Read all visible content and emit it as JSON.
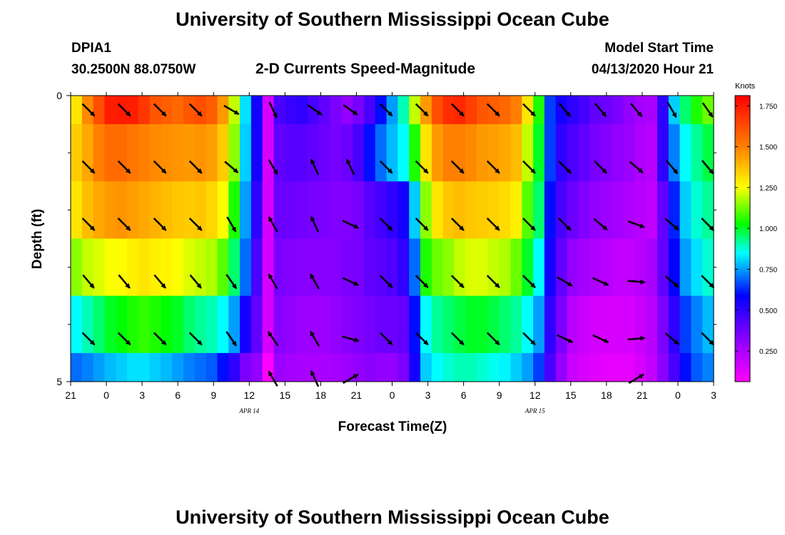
{
  "header": {
    "title_top": "University of Southern Mississippi Ocean Cube",
    "title_bottom": "University of Southern Mississippi Ocean Cube",
    "station": "DPIA1",
    "coords": "30.2500N 88.0750W",
    "subtitle": "2-D Currents Speed-Magnitude",
    "model_start_label": "Model Start Time",
    "model_start_value": "04/13/2020 Hour 21"
  },
  "chart_data": {
    "type": "heatmap",
    "title": "2-D Currents Speed-Magnitude",
    "xlabel": "Forecast Time(Z)",
    "ylabel": "Depth (ft)",
    "x_tick_labels": [
      "21",
      "0",
      "3",
      "6",
      "9",
      "12",
      "15",
      "18",
      "21",
      "0",
      "3",
      "6",
      "9",
      "12",
      "15",
      "18",
      "21",
      "0",
      "3"
    ],
    "x_date_labels": [
      {
        "label": "APR 14",
        "hour_index": 15
      },
      {
        "label": "APR 15",
        "hour_index": 39
      }
    ],
    "y_tick_labels": [
      "0",
      "5"
    ],
    "ylim": [
      0,
      5
    ],
    "hours_range": [
      0,
      54
    ],
    "colorbar": {
      "unit": "Knots",
      "range": [
        0.0625,
        1.8125
      ],
      "tick_labels": [
        "1.750",
        "1.500",
        "1.250",
        "1.000",
        "0.750",
        "0.500",
        "0.250"
      ],
      "tick_values": [
        1.75,
        1.5,
        1.25,
        1.0,
        0.75,
        0.5,
        0.25
      ]
    },
    "depth_bins_ft": [
      0,
      0.5,
      1.5,
      2.5,
      3.5,
      4.5,
      5
    ],
    "speed_knots": {
      "layer_1": [
        1.3,
        1.48,
        1.62,
        1.74,
        1.75,
        1.74,
        1.68,
        1.6,
        1.58,
        1.56,
        1.6,
        1.62,
        1.58,
        1.45,
        1.2,
        0.82,
        0.55,
        0.15,
        0.45,
        0.48,
        0.5,
        0.45,
        0.4,
        0.35,
        0.3,
        0.36,
        0.45,
        0.6,
        0.75,
        0.9,
        1.2,
        1.45,
        1.62,
        1.7,
        1.72,
        1.66,
        1.6,
        1.58,
        1.56,
        1.5,
        1.3,
        1.05,
        0.65,
        0.55,
        0.5,
        0.46,
        0.4,
        0.38,
        0.35,
        0.3,
        0.26,
        0.25,
        0.5,
        0.8,
        0.95,
        1.05,
        1.12
      ],
      "layer_2": [
        1.35,
        1.42,
        1.5,
        1.55,
        1.55,
        1.52,
        1.5,
        1.48,
        1.47,
        1.46,
        1.45,
        1.46,
        1.44,
        1.35,
        1.15,
        0.8,
        0.55,
        0.15,
        0.4,
        0.42,
        0.42,
        0.4,
        0.38,
        0.36,
        0.38,
        0.45,
        0.6,
        0.7,
        0.78,
        0.85,
        1.05,
        1.3,
        1.45,
        1.5,
        1.5,
        1.48,
        1.45,
        1.44,
        1.42,
        1.38,
        1.2,
        1.0,
        0.65,
        0.5,
        0.44,
        0.4,
        0.36,
        0.33,
        0.3,
        0.28,
        0.24,
        0.22,
        0.5,
        0.72,
        0.85,
        0.92,
        0.98
      ],
      "layer_3": [
        1.3,
        1.38,
        1.42,
        1.45,
        1.46,
        1.44,
        1.42,
        1.4,
        1.38,
        1.36,
        1.35,
        1.36,
        1.33,
        1.25,
        1.05,
        0.75,
        0.5,
        0.15,
        0.38,
        0.38,
        0.37,
        0.36,
        0.35,
        0.34,
        0.34,
        0.36,
        0.42,
        0.46,
        0.5,
        0.55,
        0.8,
        1.15,
        1.3,
        1.36,
        1.38,
        1.36,
        1.35,
        1.34,
        1.32,
        1.28,
        1.1,
        0.95,
        0.6,
        0.45,
        0.38,
        0.34,
        0.3,
        0.28,
        0.26,
        0.24,
        0.22,
        0.2,
        0.4,
        0.62,
        0.8,
        0.88,
        0.92
      ],
      "layer_4": [
        1.15,
        1.2,
        1.22,
        1.25,
        1.26,
        1.28,
        1.3,
        1.28,
        1.27,
        1.25,
        1.22,
        1.2,
        1.18,
        1.1,
        0.95,
        0.7,
        0.45,
        0.15,
        0.35,
        0.34,
        0.33,
        0.32,
        0.32,
        0.33,
        0.35,
        0.36,
        0.4,
        0.42,
        0.44,
        0.5,
        0.7,
        1.05,
        1.12,
        1.15,
        1.2,
        1.22,
        1.22,
        1.2,
        1.18,
        1.12,
        1.0,
        0.85,
        0.55,
        0.4,
        0.3,
        0.26,
        0.24,
        0.22,
        0.2,
        0.2,
        0.22,
        0.25,
        0.4,
        0.58,
        0.75,
        0.82,
        0.88
      ],
      "layer_5": [
        0.85,
        0.9,
        0.95,
        1.0,
        1.02,
        1.05,
        1.07,
        1.05,
        1.02,
        1.0,
        0.95,
        0.92,
        0.9,
        0.85,
        0.75,
        0.55,
        0.4,
        0.15,
        0.32,
        0.3,
        0.28,
        0.28,
        0.28,
        0.3,
        0.32,
        0.34,
        0.36,
        0.38,
        0.38,
        0.4,
        0.6,
        0.85,
        0.92,
        0.95,
        0.98,
        1.0,
        1.0,
        0.98,
        0.95,
        0.92,
        0.85,
        0.75,
        0.5,
        0.35,
        0.22,
        0.18,
        0.16,
        0.15,
        0.15,
        0.15,
        0.18,
        0.22,
        0.35,
        0.5,
        0.65,
        0.72,
        0.78
      ],
      "layer_6": [
        0.7,
        0.72,
        0.75,
        0.78,
        0.8,
        0.82,
        0.82,
        0.8,
        0.78,
        0.75,
        0.72,
        0.7,
        0.68,
        0.6,
        0.5,
        0.35,
        0.3,
        0.05,
        0.28,
        0.26,
        0.25,
        0.25,
        0.25,
        0.26,
        0.28,
        0.3,
        0.32,
        0.3,
        0.3,
        0.35,
        0.55,
        0.8,
        0.85,
        0.88,
        0.9,
        0.9,
        0.88,
        0.86,
        0.84,
        0.8,
        0.75,
        0.65,
        0.45,
        0.3,
        0.18,
        0.15,
        0.13,
        0.12,
        0.12,
        0.12,
        0.15,
        0.2,
        0.32,
        0.45,
        0.6,
        0.68,
        0.72
      ]
    },
    "vectors": {
      "hours": [
        1.5,
        4.5,
        7.5,
        10.5,
        13.5,
        17,
        20.5,
        23.5,
        26.5,
        29.5,
        32.5,
        35.5,
        38.5,
        41.5,
        44.5,
        47.5,
        50.5,
        53.5
      ],
      "depths_ft": [
        0.25,
        1.25,
        2.25,
        3.25,
        4.25,
        4.95
      ],
      "directions_deg": [
        [
          135,
          135,
          135,
          135,
          120,
          155,
          125,
          125,
          135,
          135,
          135,
          135,
          135,
          140,
          140,
          140,
          150,
          145
        ],
        [
          135,
          135,
          135,
          135,
          130,
          150,
          335,
          335,
          135,
          135,
          135,
          135,
          135,
          135,
          135,
          130,
          140,
          140
        ],
        [
          135,
          135,
          135,
          135,
          150,
          330,
          335,
          115,
          135,
          135,
          135,
          135,
          135,
          135,
          130,
          110,
          130,
          135
        ],
        [
          140,
          140,
          140,
          140,
          145,
          330,
          330,
          115,
          135,
          135,
          135,
          135,
          135,
          120,
          115,
          95,
          130,
          135
        ],
        [
          135,
          135,
          135,
          135,
          145,
          325,
          330,
          105,
          135,
          135,
          135,
          135,
          135,
          115,
          115,
          85,
          130,
          135
        ],
        [
          null,
          null,
          null,
          null,
          null,
          330,
          335,
          60,
          null,
          null,
          null,
          null,
          null,
          null,
          null,
          60,
          null,
          null
        ]
      ]
    }
  }
}
